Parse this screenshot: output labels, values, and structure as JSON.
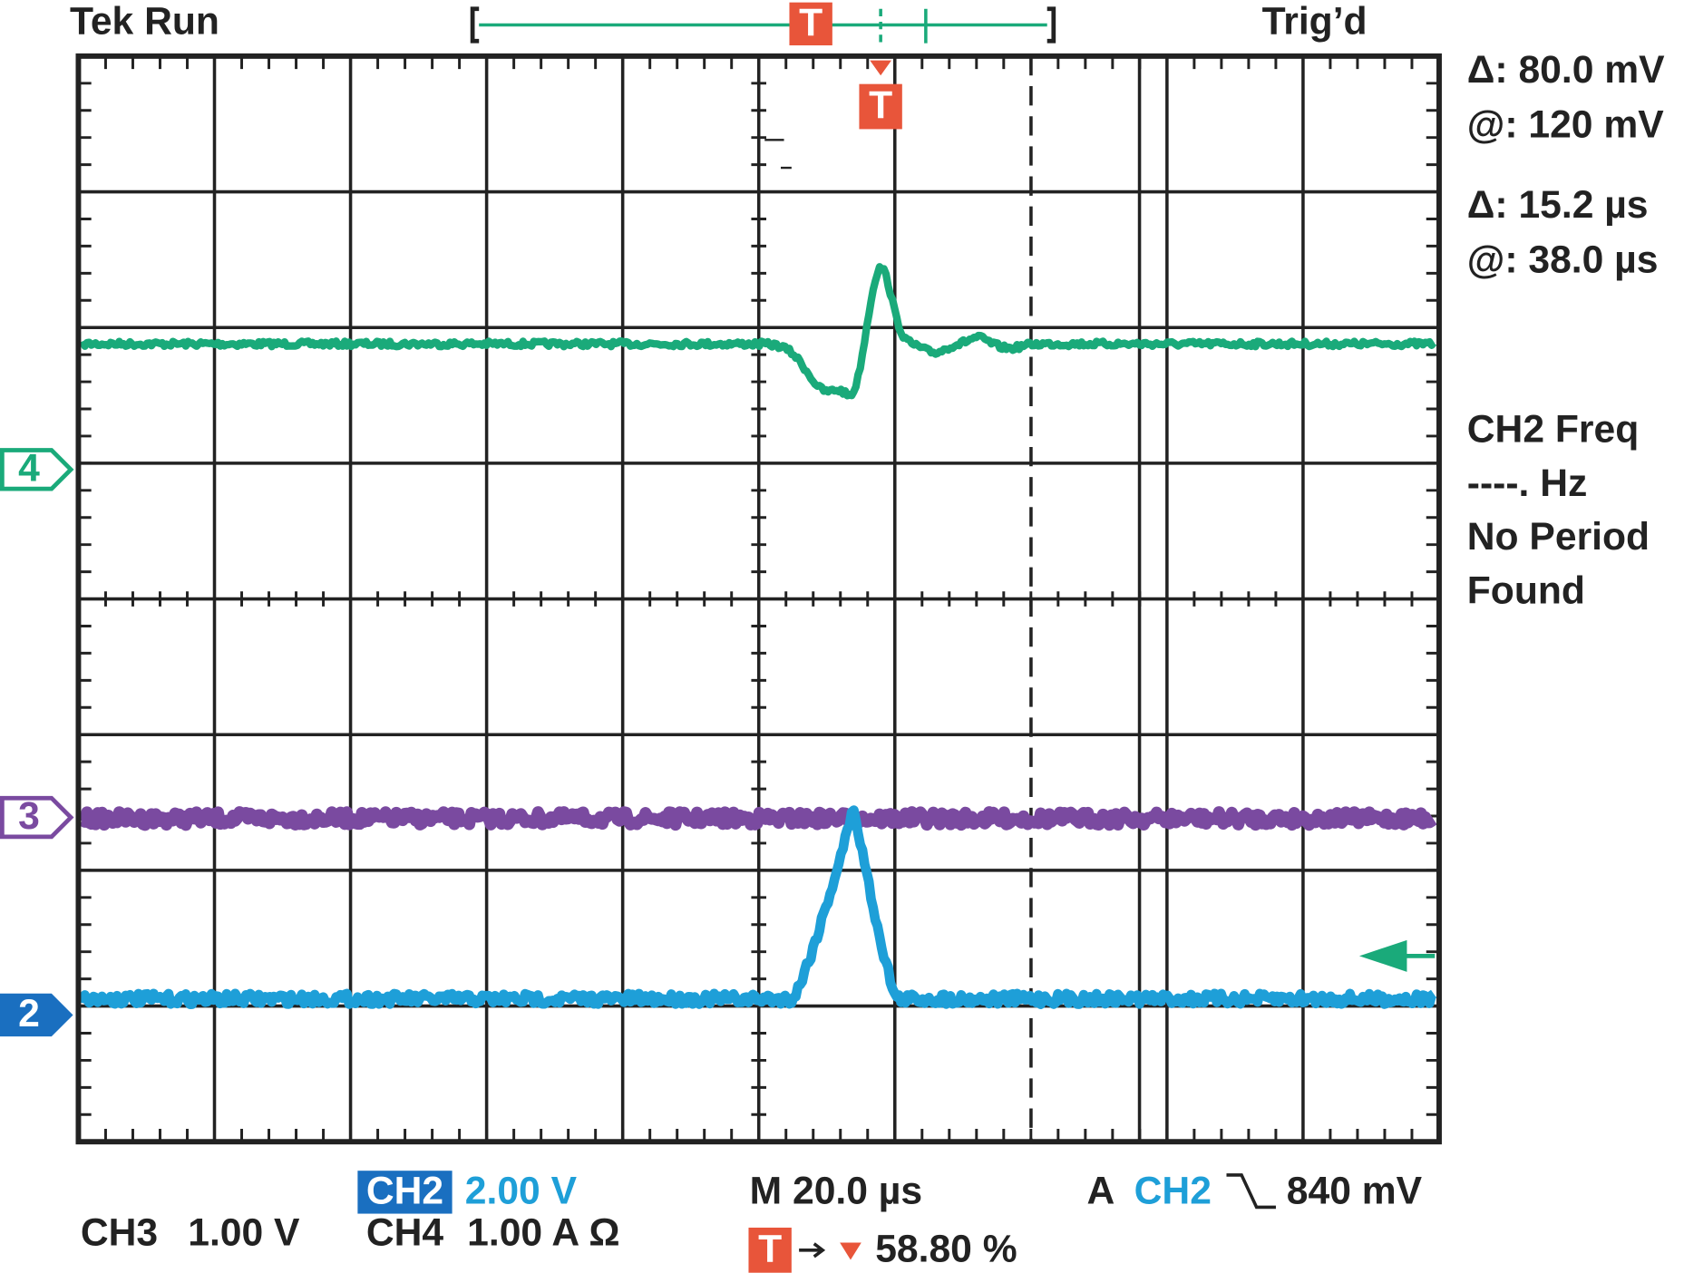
{
  "header": {
    "status": "Tek Run",
    "trigger_state": "Trig’d",
    "record_trigger_marker": "T"
  },
  "readouts": {
    "amplitude_delta": "Δ: 80.0 mV",
    "amplitude_at": "@: 120 mV",
    "time_delta": "Δ: 15.2 µs",
    "time_at": "@: 38.0 µs"
  },
  "measurement": [
    "CH2 Freq",
    "----. Hz",
    "No Period",
    "Found"
  ],
  "markers": {
    "ch4": "4",
    "ch3": "3",
    "ch2": "2",
    "trigger": "T"
  },
  "footer": {
    "ch2_label": "CH2",
    "ch2_scale": "2.00 V",
    "ch3_label": "CH3",
    "ch3_scale": "1.00 V",
    "ch4_label": "CH4",
    "ch4_scale": "1.00 A Ω",
    "timebase": "M 20.0 µs",
    "trigger_source_prefix": "A",
    "trigger_source": "CH2",
    "trigger_level": "840 mV",
    "trigger_position_marker": "T",
    "trigger_position": "58.80 %"
  }
}
